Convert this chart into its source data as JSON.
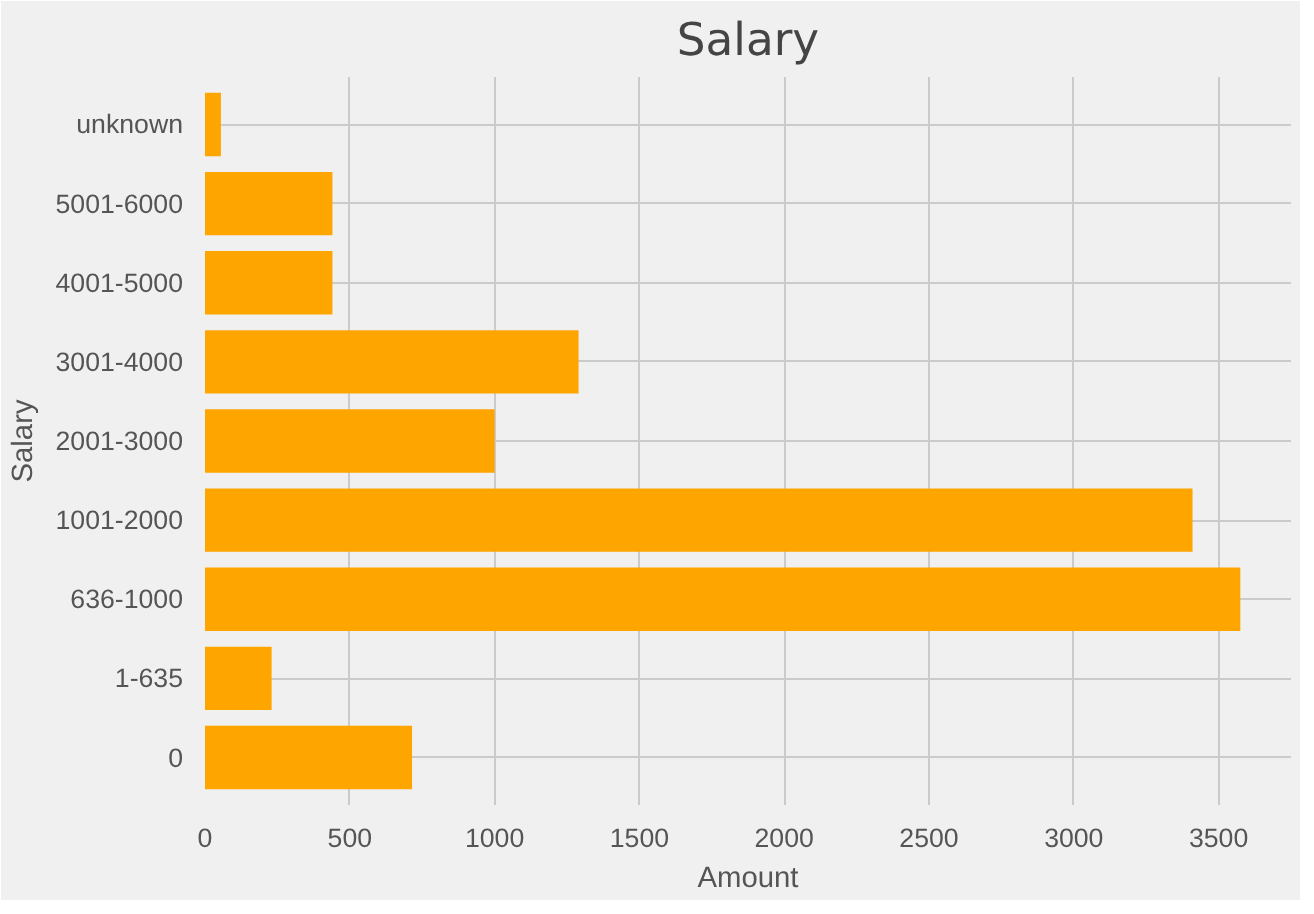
{
  "chart_data": {
    "type": "bar",
    "orientation": "horizontal",
    "title": "Salary",
    "xlabel": "Amount",
    "ylabel": "Salary",
    "categories": [
      "unknown",
      "5001-6000",
      "4001-5000",
      "3001-4000",
      "2001-3000",
      "1001-2000",
      "636-1000",
      "1-635",
      "0"
    ],
    "values": [
      55,
      440,
      440,
      1290,
      1000,
      3410,
      3575,
      230,
      715
    ],
    "color": "#ffa500",
    "xlim": [
      0,
      3750
    ],
    "xticks": [
      0,
      500,
      1000,
      1500,
      2000,
      2500,
      3000,
      3500
    ],
    "grid": true
  }
}
